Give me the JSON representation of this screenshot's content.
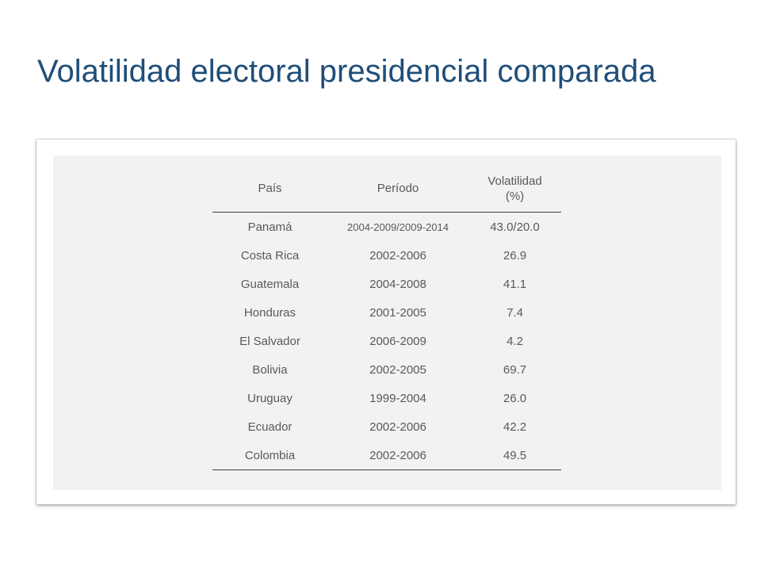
{
  "title": "Volatilidad electoral presidencial comparada",
  "table": {
    "headers": {
      "country": "País",
      "period": "Período",
      "volatility_line1": "Volatilidad",
      "volatility_line2": "(%)"
    },
    "rows": [
      {
        "country": "Panamá",
        "period": "2004-2009/2009-2014",
        "volatility": "43.0/20.0"
      },
      {
        "country": "Costa Rica",
        "period": "2002-2006",
        "volatility": "26.9"
      },
      {
        "country": "Guatemala",
        "period": "2004-2008",
        "volatility": "41.1"
      },
      {
        "country": "Honduras",
        "period": "2001-2005",
        "volatility": "7.4"
      },
      {
        "country": "El Salvador",
        "period": "2006-2009",
        "volatility": "4.2"
      },
      {
        "country": "Bolivia",
        "period": "2002-2005",
        "volatility": "69.7"
      },
      {
        "country": "Uruguay",
        "period": "1999-2004",
        "volatility": "26.0"
      },
      {
        "country": "Ecuador",
        "period": "2002-2006",
        "volatility": "42.2"
      },
      {
        "country": "Colombia",
        "period": "2002-2006",
        "volatility": "49.5"
      }
    ]
  },
  "colors": {
    "title": "#1f4e79",
    "table_text": "#595959",
    "table_background": "#f2f2f2"
  }
}
